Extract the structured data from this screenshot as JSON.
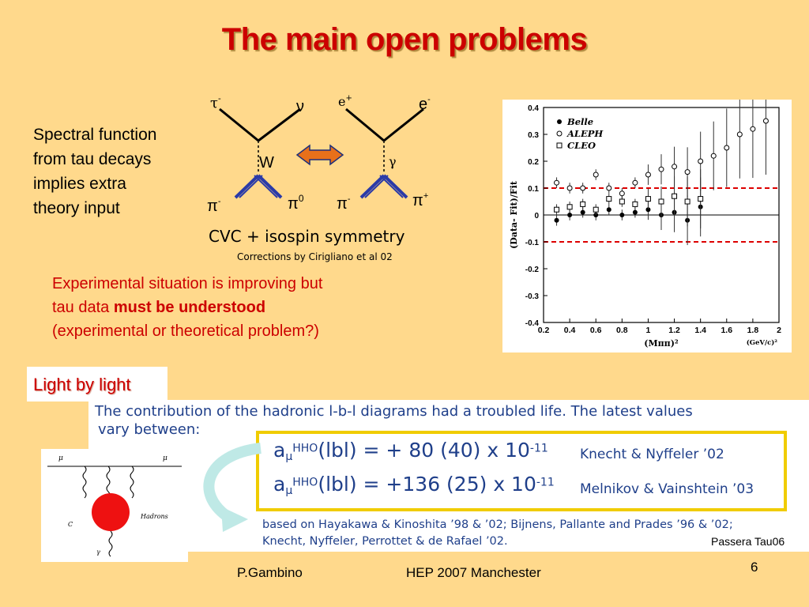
{
  "slide": {
    "title": "The main open problems",
    "spectral_text": [
      "Spectral function",
      "from tau decays",
      "implies extra",
      "theory input"
    ],
    "feynman": {
      "tau": "τ",
      "tau_sup": "-",
      "nu": "ν",
      "w": "W",
      "pi_minus_left": "π",
      "pi_minus_left_sup": "-",
      "pi_zero": "π",
      "pi_zero_sup": "0",
      "e_plus": "e",
      "e_plus_sup": "+",
      "e_minus": "e",
      "e_minus_sup": "-",
      "gamma": "γ",
      "pi_minus_right": "π",
      "pi_minus_right_sup": "-",
      "pi_plus": "π",
      "pi_plus_sup": "+"
    },
    "cvc_text": "CVC + isospin symmetry",
    "corrections_text": "Corrections by Cirigliano et al 02",
    "experimental": {
      "line1": "Experimental situation is improving but",
      "line2_prefix": "tau data ",
      "line2_bold": "must be understood",
      "line3": "(experimental or theoretical problem?)"
    },
    "light_by_light": "Light by light",
    "contribution_line1": "The contribution of the hadronic l-b-l diagrams had a troubled life. The latest values",
    "contribution_line2": "vary between:",
    "amu_entries": [
      {
        "prefix": "a",
        "sub": "μ",
        "sup": "HHO",
        "expr": "(lbl) = + 80 (40) x 10",
        "exp": "-11",
        "ref": "Knecht & Nyffeler ’02"
      },
      {
        "prefix": "a",
        "sub": "μ",
        "sup": "HHO",
        "expr": "(lbl) = +136 (25) x 10",
        "exp": "-11",
        "ref": "Melnikov & Vainshtein ’03"
      }
    ],
    "based_on_line1": "based on  Hayakawa & Kinoshita ’98 & ’02; Bijnens, Pallante and Prades ’96 & ’02;",
    "based_on_line2": "Knecht, Nyffeler, Perrottet & de Rafael ’02.",
    "lbl_diagram": {
      "mu_left": "μ",
      "mu_right": "μ",
      "hadrons": "Hadrons",
      "c": "C",
      "gamma": "γ"
    },
    "passera": "Passera Tau06",
    "footer_author": "P.Gambino",
    "footer_conf": "HEP 2007 Manchester",
    "page_number": "6"
  },
  "chart_data": {
    "type": "scatter",
    "title": "",
    "xlabel": "(Mππ)²",
    "xunit": "(GeV/c)²",
    "ylabel": "(Data- Fit)/Fit",
    "xlim": [
      0.2,
      2.0
    ],
    "ylim": [
      -0.4,
      0.4
    ],
    "x_ticks": [
      "0.2",
      "0.4",
      "0.6",
      "0.8",
      "1",
      "1.2",
      "1.4",
      "1.6",
      "1.8",
      "2"
    ],
    "y_ticks": [
      "0.4",
      "0.3",
      "0.2",
      "0.1",
      "0",
      "-0.1",
      "-0.2",
      "-0.3",
      "-0.4"
    ],
    "legend": [
      "Belle",
      "ALEPH",
      "CLEO"
    ],
    "legend_position": "top-left",
    "reference_lines": [
      0.1,
      -0.1
    ],
    "series": [
      {
        "name": "Belle",
        "marker": "filled-circle",
        "x": [
          0.3,
          0.4,
          0.5,
          0.6,
          0.7,
          0.8,
          0.9,
          1.0,
          1.1,
          1.2,
          1.3,
          1.4
        ],
        "y": [
          -0.02,
          0.0,
          0.01,
          0.0,
          0.02,
          0.0,
          0.01,
          0.02,
          0.0,
          0.01,
          -0.02,
          0.03
        ]
      },
      {
        "name": "ALEPH",
        "marker": "open-circle",
        "x": [
          0.3,
          0.4,
          0.5,
          0.6,
          0.7,
          0.8,
          0.9,
          1.0,
          1.1,
          1.2,
          1.3,
          1.4,
          1.5,
          1.6,
          1.7,
          1.8,
          1.9
        ],
        "y": [
          0.12,
          0.1,
          0.1,
          0.15,
          0.1,
          0.08,
          0.12,
          0.15,
          0.17,
          0.18,
          0.16,
          0.2,
          0.22,
          0.25,
          0.3,
          0.32,
          0.35
        ]
      },
      {
        "name": "CLEO",
        "marker": "open-square",
        "x": [
          0.3,
          0.4,
          0.5,
          0.6,
          0.7,
          0.8,
          0.9,
          1.0,
          1.1,
          1.2,
          1.3,
          1.4
        ],
        "y": [
          0.02,
          0.03,
          0.04,
          0.02,
          0.06,
          0.05,
          0.04,
          0.06,
          0.05,
          0.07,
          0.05,
          0.06
        ]
      }
    ]
  }
}
